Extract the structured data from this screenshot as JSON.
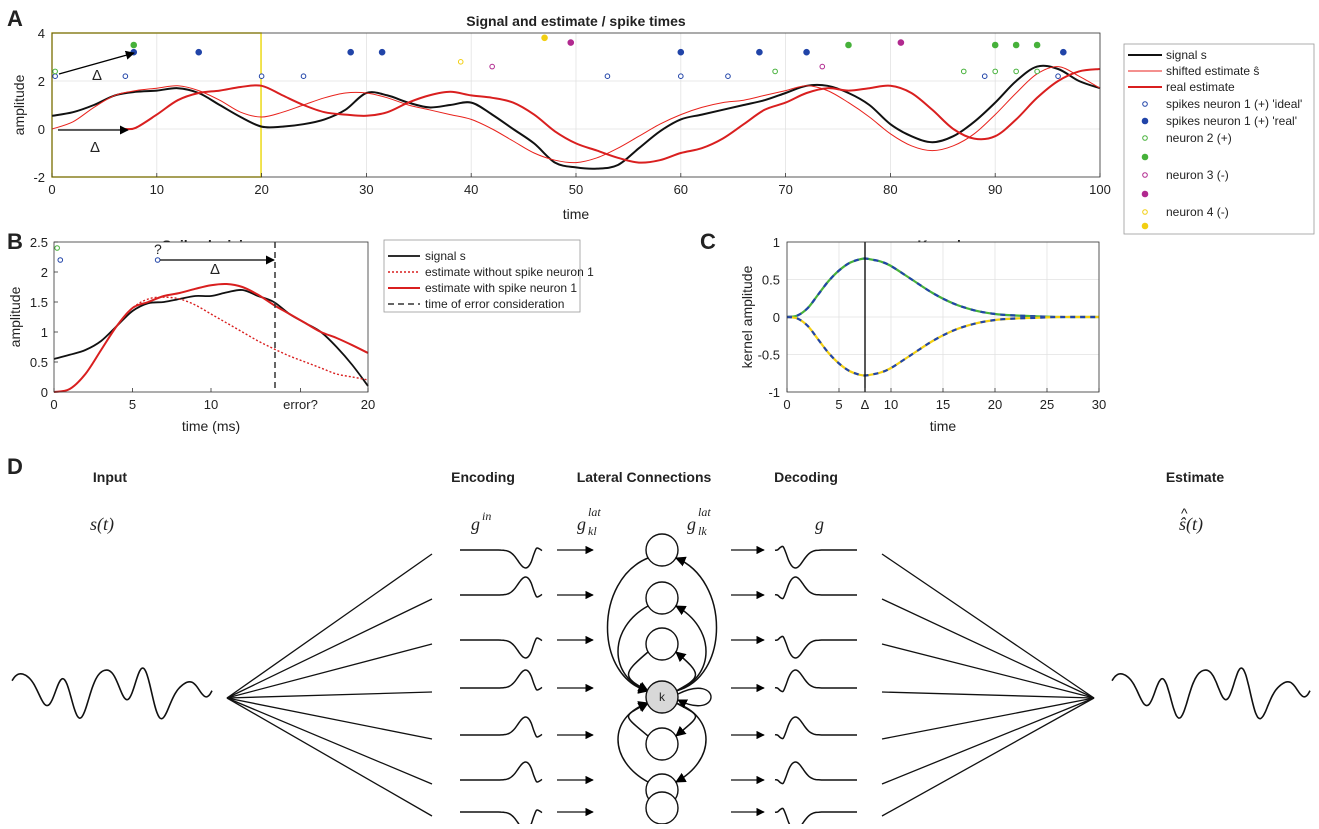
{
  "panels": {
    "a": "A",
    "b": "B",
    "c": "C",
    "d": "D"
  },
  "colors": {
    "signal": "#111111",
    "shifted": "#e8221c",
    "real": "#d91f1f",
    "blue": "#2144a8",
    "green": "#46b13a",
    "magenta": "#b1298f",
    "yellow": "#f2cf12",
    "box": "#f1df2a",
    "grid": "#e2e2e2"
  },
  "chart_data": [
    {
      "id": "A",
      "type": "line",
      "title": "Signal and estimate / spike times",
      "xlabel": "time",
      "ylabel": "amplitude",
      "xlim": [
        0,
        100
      ],
      "ylim": [
        -2,
        4
      ],
      "xticks": [
        "0",
        "10",
        "20",
        "30",
        "40",
        "50",
        "60",
        "70",
        "80",
        "90",
        "100"
      ],
      "yticks": [
        "-2",
        "0",
        "2",
        "4"
      ],
      "delta_label": "Δ",
      "legend": {
        "placement": "right",
        "entries": [
          "signal s",
          "shifted estimate ŝ",
          "real estimate",
          "spikes neuron 1 (+) 'ideal'",
          "spikes neuron 1 (+) 'real'",
          "neuron 2 (+)",
          "",
          "neuron 3 (-)",
          "",
          "neuron 4 (-)",
          ""
        ]
      },
      "series": [
        {
          "name": "signal s",
          "x": [
            0,
            2,
            4,
            6,
            8,
            10,
            12,
            14,
            16,
            18,
            20,
            22,
            24,
            26,
            28,
            30,
            32,
            34,
            36,
            38,
            40,
            42,
            44,
            46,
            48,
            50,
            52,
            54,
            56,
            58,
            60,
            62,
            64,
            66,
            68,
            70,
            72,
            74,
            76,
            78,
            80,
            82,
            84,
            86,
            88,
            90,
            92,
            94,
            96,
            98,
            100
          ],
          "y": [
            0.55,
            0.7,
            1.0,
            1.4,
            1.55,
            1.6,
            1.7,
            1.5,
            1.0,
            0.5,
            0.1,
            0.1,
            0.2,
            0.4,
            0.8,
            1.5,
            1.4,
            1.1,
            0.9,
            1.0,
            1.1,
            0.6,
            0.0,
            -0.6,
            -1.4,
            -1.6,
            -1.65,
            -1.5,
            -0.8,
            -0.1,
            0.4,
            0.6,
            0.8,
            1.0,
            1.2,
            1.5,
            1.8,
            1.8,
            1.5,
            1.0,
            0.2,
            -0.3,
            -0.55,
            -0.3,
            0.3,
            1.1,
            2.0,
            2.6,
            2.5,
            2.0,
            1.7
          ]
        },
        {
          "name": "shifted estimate ŝ",
          "x": [
            0,
            2,
            4,
            6,
            8,
            10,
            12,
            14,
            16,
            18,
            20,
            22,
            24,
            26,
            28,
            30,
            32,
            34,
            36,
            38,
            40,
            42,
            44,
            46,
            48,
            50,
            52,
            54,
            56,
            58,
            60,
            62,
            64,
            66,
            68,
            70,
            72,
            74,
            76,
            78,
            80,
            82,
            84,
            86,
            88,
            90,
            92,
            94,
            96,
            98,
            100
          ],
          "y": [
            0.0,
            0.3,
            0.9,
            1.4,
            1.6,
            1.7,
            1.8,
            1.6,
            1.2,
            0.7,
            0.5,
            0.7,
            1.0,
            1.3,
            1.5,
            1.5,
            1.3,
            1.0,
            0.8,
            0.6,
            0.4,
            0.0,
            -0.5,
            -1.0,
            -1.3,
            -1.4,
            -1.2,
            -0.8,
            -0.3,
            0.2,
            0.6,
            0.9,
            1.1,
            1.2,
            1.4,
            1.6,
            1.8,
            1.6,
            1.1,
            0.5,
            -0.2,
            -0.7,
            -0.9,
            -0.7,
            -0.2,
            0.6,
            1.5,
            2.3,
            2.6,
            2.2,
            1.7
          ]
        },
        {
          "name": "real estimate",
          "x": [
            7,
            8,
            10,
            12,
            14,
            16,
            18,
            20,
            22,
            24,
            26,
            28,
            30,
            32,
            34,
            36,
            38,
            40,
            42,
            44,
            46,
            48,
            50,
            52,
            54,
            56,
            58,
            60,
            62,
            64,
            66,
            68,
            70,
            72,
            74,
            76,
            78,
            80,
            82,
            84,
            86,
            88,
            90,
            92,
            94,
            96,
            98,
            100
          ],
          "y": [
            0.0,
            0.05,
            0.6,
            1.2,
            1.5,
            1.6,
            1.75,
            1.8,
            1.4,
            1.0,
            0.7,
            0.6,
            0.55,
            0.7,
            1.1,
            1.4,
            1.55,
            1.4,
            1.3,
            1.1,
            0.6,
            -0.1,
            -0.6,
            -0.9,
            -1.2,
            -1.4,
            -1.3,
            -1.0,
            -0.8,
            -0.4,
            0.2,
            0.8,
            1.1,
            1.5,
            1.7,
            1.6,
            1.7,
            1.8,
            1.5,
            0.8,
            0.0,
            -0.4,
            -0.3,
            0.4,
            1.3,
            2.0,
            2.4,
            2.5
          ]
        }
      ],
      "spikes": [
        {
          "name": "spikes neuron 1 (+) 'ideal'",
          "x": [
            0.3,
            7,
            20,
            24,
            53,
            60,
            64.5,
            89,
            96
          ],
          "y": 2.2
        },
        {
          "name": "spikes neuron 1 (+) 'real'",
          "x": [
            7.8,
            14,
            28.5,
            31.5,
            60,
            67.5,
            72,
            96.5
          ],
          "y": 3.2
        },
        {
          "name": "neuron 2 ideal",
          "x": [
            0.3,
            69,
            87,
            90,
            92,
            94
          ],
          "y": 2.4
        },
        {
          "name": "neuron 2 real",
          "x": [
            7.8,
            76,
            90,
            92,
            94
          ],
          "y": 3.5
        },
        {
          "name": "neuron 3 ideal",
          "x": [
            42,
            73.5
          ],
          "y": 2.6
        },
        {
          "name": "neuron 3 real",
          "x": [
            49.5,
            81
          ],
          "y": 3.6
        },
        {
          "name": "neuron 4 ideal",
          "x": [
            39
          ],
          "y": 2.8
        },
        {
          "name": "neuron 4 real",
          "x": [
            47
          ],
          "y": 3.8
        }
      ]
    },
    {
      "id": "B",
      "type": "line",
      "title": "Spike decision",
      "xlabel": "time (ms)",
      "ylabel": "amplitude",
      "xlim": [
        0,
        20
      ],
      "ylim": [
        0,
        2.5
      ],
      "xticks": [
        "0",
        "5",
        "10",
        "error?",
        "20"
      ],
      "yticks": [
        "0",
        "0.5",
        "1",
        "1.5",
        "2",
        "2.5"
      ],
      "question_label": "?",
      "delta_label": "Δ",
      "legend": {
        "placement": "right",
        "entries": [
          "signal s",
          "estimate without spike neuron 1",
          "estimate with spike neuron 1",
          "time of error consideration"
        ]
      },
      "series": [
        {
          "name": "signal s",
          "x": [
            0,
            1,
            2,
            3,
            4,
            5,
            6,
            7,
            8,
            9,
            10,
            11,
            12,
            13,
            14,
            15,
            16,
            17,
            18,
            19,
            20
          ],
          "y": [
            0.55,
            0.62,
            0.7,
            0.85,
            1.1,
            1.35,
            1.48,
            1.5,
            1.55,
            1.6,
            1.6,
            1.66,
            1.7,
            1.6,
            1.5,
            1.3,
            1.15,
            1.0,
            0.75,
            0.45,
            0.1
          ]
        },
        {
          "name": "estimate without spike neuron 1",
          "x": [
            0,
            1,
            2,
            3,
            4,
            5,
            6,
            7,
            8,
            9,
            10,
            11,
            12,
            13,
            14,
            15,
            16,
            17,
            18,
            19,
            20
          ],
          "y": [
            0.0,
            0.05,
            0.3,
            0.7,
            1.1,
            1.4,
            1.55,
            1.58,
            1.55,
            1.45,
            1.3,
            1.15,
            1.0,
            0.85,
            0.72,
            0.6,
            0.5,
            0.4,
            0.3,
            0.25,
            0.2
          ]
        },
        {
          "name": "estimate with spike neuron 1",
          "x": [
            0,
            1,
            2,
            3,
            4,
            5,
            6,
            7,
            8,
            9,
            10,
            11,
            12,
            13,
            14,
            15,
            16,
            17,
            18,
            19,
            20
          ],
          "y": [
            0.0,
            0.05,
            0.3,
            0.7,
            1.1,
            1.4,
            1.5,
            1.6,
            1.65,
            1.72,
            1.78,
            1.8,
            1.75,
            1.62,
            1.45,
            1.3,
            1.15,
            1.0,
            0.9,
            0.78,
            0.65
          ]
        }
      ],
      "error_time": 15.7,
      "spikes": [
        {
          "name": "neuron 1 ideal",
          "x": [
            0.4,
            6.6
          ],
          "y": 2.2
        },
        {
          "name": "neuron 2 ideal",
          "x": [
            0.2
          ],
          "y": 2.4
        }
      ]
    },
    {
      "id": "C",
      "type": "line",
      "title": "Kernels",
      "xlabel": "time",
      "ylabel": "kernel amplitude",
      "xlim": [
        0,
        30
      ],
      "ylim": [
        -1,
        1
      ],
      "xticks": [
        "0",
        "5",
        "Δ",
        "10",
        "15",
        "20",
        "25",
        "30"
      ],
      "yticks": [
        "-1",
        "-0.5",
        "0",
        "0.5",
        "1"
      ],
      "delta_time": 7.5,
      "series": [
        {
          "name": "positive kernel",
          "x": [
            0,
            1,
            2,
            3,
            4,
            5,
            6,
            7,
            7.5,
            8,
            9,
            10,
            12,
            14,
            16,
            18,
            20,
            22,
            24,
            26,
            28,
            30
          ],
          "y": [
            0.0,
            0.02,
            0.12,
            0.3,
            0.48,
            0.62,
            0.72,
            0.77,
            0.78,
            0.77,
            0.74,
            0.68,
            0.5,
            0.32,
            0.18,
            0.09,
            0.04,
            0.02,
            0.01,
            0.0,
            0.0,
            0.0
          ]
        },
        {
          "name": "negative kernel",
          "x": [
            0,
            1,
            2,
            3,
            4,
            5,
            6,
            7,
            7.5,
            8,
            9,
            10,
            12,
            14,
            16,
            18,
            20,
            22,
            24,
            26,
            28,
            30
          ],
          "y": [
            0.0,
            -0.02,
            -0.12,
            -0.3,
            -0.48,
            -0.62,
            -0.72,
            -0.77,
            -0.78,
            -0.77,
            -0.74,
            -0.68,
            -0.5,
            -0.32,
            -0.18,
            -0.09,
            -0.04,
            -0.02,
            -0.01,
            0.0,
            0.0,
            0.0
          ]
        }
      ]
    }
  ],
  "diagram": {
    "input_title": "Input",
    "encoding_title": "Encoding",
    "lateral_title": "Lateral Connections",
    "decoding_title": "Decoding",
    "estimate_title": "Estimate",
    "node_k": "k"
  }
}
